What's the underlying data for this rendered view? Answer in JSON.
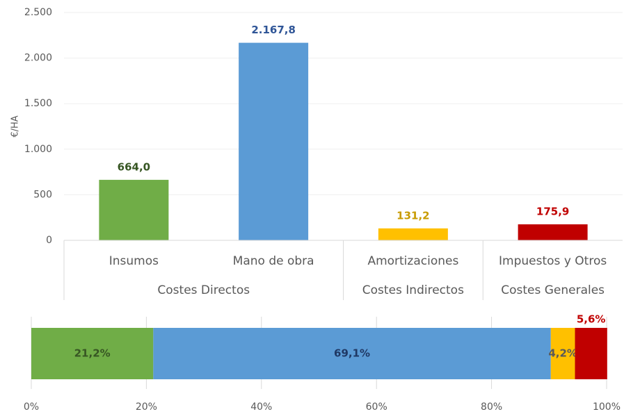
{
  "chart_data": [
    {
      "type": "bar",
      "ylabel": "€/HA",
      "categories": [
        "Insumos",
        "Mano de obra",
        "Amortizaciones",
        "Impuestos y Otros"
      ],
      "group_labels": [
        "Costes Directos",
        null,
        "Costes Indirectos",
        "Costes Generales"
      ],
      "values": [
        664.0,
        2167.8,
        131.2,
        175.9
      ],
      "value_labels": [
        "664,0",
        "2.167,8",
        "131,2",
        "175,9"
      ],
      "colors": [
        "#70ad47",
        "#5b9bd5",
        "#ffc000",
        "#c00000"
      ],
      "value_label_colors": [
        "#375623",
        "#2f5597",
        "#c89b00",
        "#c00000"
      ],
      "ylim": [
        0,
        2500
      ],
      "yticks": [
        0,
        500,
        {
          "value": 1000,
          "label": "1.000"
        },
        {
          "value": 1500,
          "label": "1.500"
        },
        {
          "value": 2000,
          "label": "2.000"
        },
        {
          "value": 2500,
          "label": "2.500"
        }
      ],
      "grid": true
    },
    {
      "type": "stacked_barh",
      "series": [
        {
          "color": "#70ad47",
          "label_color": "#375623",
          "values": [
            21.2
          ],
          "value_labels": [
            "21,2%"
          ]
        },
        {
          "color": "#5b9bd5",
          "label_color": "#1f3864",
          "values": [
            69.1
          ],
          "value_labels": [
            "69,1%"
          ]
        },
        {
          "color": "#ffc000",
          "label_color": "#595959",
          "values": [
            4.2
          ],
          "value_labels": [
            "4,2%"
          ]
        },
        {
          "color": "#c00000",
          "label_color": "#c00000",
          "values": [
            5.6
          ],
          "value_labels": [
            "5,6%"
          ]
        }
      ],
      "xlim": [
        0,
        100
      ],
      "xticks": [
        {
          "value": 0,
          "label": "0%"
        },
        {
          "value": 20,
          "label": "20%"
        },
        {
          "value": 40,
          "label": "40%"
        },
        {
          "value": 60,
          "label": "60%"
        },
        {
          "value": 80,
          "label": "80%"
        },
        {
          "value": 100,
          "label": "100%"
        }
      ],
      "grid": true
    }
  ]
}
